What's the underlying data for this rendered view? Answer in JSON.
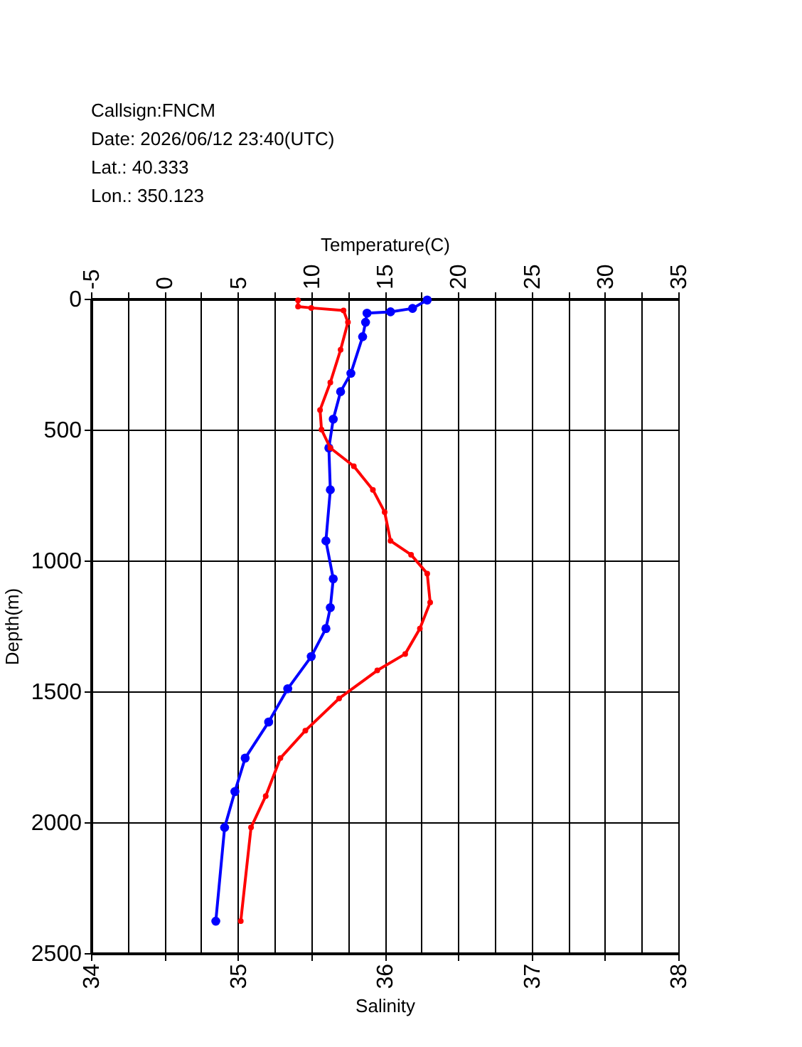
{
  "chart_data": {
    "type": "line",
    "xlabel": "Salinity",
    "x2label": "Temperature(C)",
    "ylabel": "Depth(m)",
    "annotations": [
      "Callsign:FNCM",
      "Date:  2026/06/12 23:40(UTC)",
      "Lat.:  40.333",
      "Lon.:  350.123"
    ],
    "xlim": [
      34,
      38
    ],
    "xticks": [
      34,
      {
        "value": 34.5,
        "label": null
      },
      35,
      {
        "value": 35.5,
        "label": null
      },
      36,
      {
        "value": 36.5,
        "label": null
      },
      37,
      {
        "value": 37.5,
        "label": null
      },
      38
    ],
    "x2lim": [
      -5,
      35
    ],
    "x2ticks": [
      -5,
      {
        "value": -2.5,
        "label": null
      },
      0,
      {
        "value": 2.5,
        "label": null
      },
      5,
      {
        "value": 7.5,
        "label": null
      },
      10,
      {
        "value": 12.5,
        "label": null
      },
      15,
      {
        "value": 17.5,
        "label": null
      },
      20,
      {
        "value": 22.5,
        "label": null
      },
      25,
      {
        "value": 27.5,
        "label": null
      },
      30,
      {
        "value": 32.5,
        "label": null
      },
      35
    ],
    "ylim": [
      2500,
      0
    ],
    "yticks": [
      0,
      500,
      1000,
      1500,
      2000,
      2500
    ],
    "grid": true,
    "marker": "circle",
    "line_style": "solid",
    "series": [
      {
        "color": "#0000ff",
        "axis": "x2",
        "x": [
          17.9,
          16.9,
          15.4,
          13.8,
          13.7,
          13.5,
          12.7,
          12.0,
          11.5,
          11.2,
          11.3,
          11.0,
          11.5,
          11.3,
          11.0,
          10.0,
          8.4,
          7.1,
          5.5,
          4.8,
          4.1,
          3.5
        ],
        "values": [
          5,
          37,
          50,
          55,
          90,
          145,
          285,
          355,
          460,
          570,
          730,
          925,
          1070,
          1180,
          1260,
          1367,
          1490,
          1617,
          1755,
          1883,
          2020,
          2378
        ]
      },
      {
        "color": "#ff0000",
        "x": [
          35.41,
          35.41,
          35.5,
          35.72,
          35.75,
          35.7,
          35.63,
          35.56,
          35.57,
          35.63,
          35.79,
          35.92,
          36.0,
          36.04,
          36.18,
          36.29,
          36.31,
          36.24,
          36.14,
          35.95,
          35.69,
          35.46,
          35.29,
          35.19,
          35.09,
          35.02
        ],
        "values": [
          6,
          30,
          35,
          45,
          90,
          195,
          320,
          425,
          500,
          570,
          640,
          730,
          815,
          925,
          978,
          1050,
          1160,
          1260,
          1357,
          1420,
          1527,
          1650,
          1755,
          1900,
          2020,
          2378
        ]
      }
    ]
  }
}
